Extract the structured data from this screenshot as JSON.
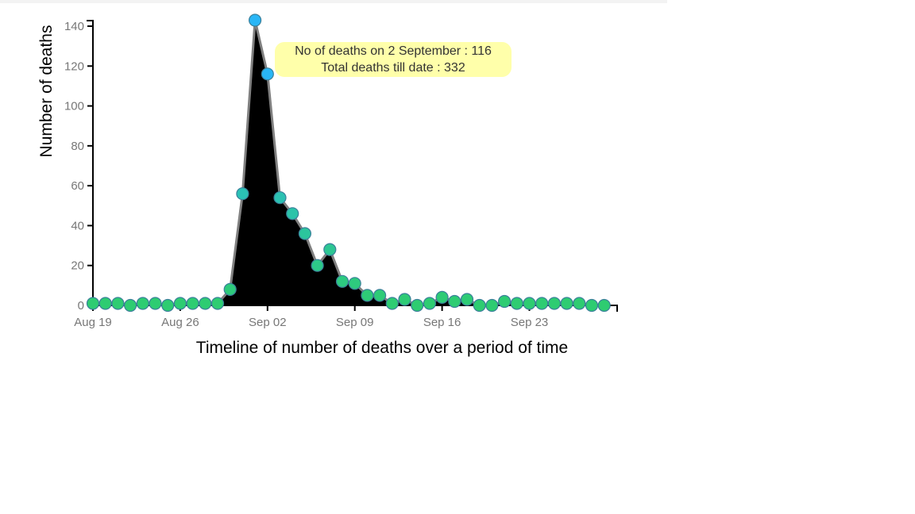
{
  "chart_data": {
    "type": "area",
    "xlabel": "Timeline of number of deaths over a period of time",
    "ylabel": "Number of deaths",
    "ylim": [
      0,
      140
    ],
    "yticks": [
      0,
      20,
      40,
      60,
      80,
      100,
      120,
      140
    ],
    "xticks": [
      {
        "date": "2024-08-19",
        "label": "Aug 19"
      },
      {
        "date": "2024-08-26",
        "label": "Aug 26"
      },
      {
        "date": "2024-09-02",
        "label": "Sep 02"
      },
      {
        "date": "2024-09-09",
        "label": "Sep 09"
      },
      {
        "date": "2024-09-16",
        "label": "Sep 16"
      },
      {
        "date": "2024-09-23",
        "label": "Sep 23"
      }
    ],
    "x": [
      "2024-08-19",
      "2024-08-20",
      "2024-08-21",
      "2024-08-22",
      "2024-08-23",
      "2024-08-24",
      "2024-08-25",
      "2024-08-26",
      "2024-08-27",
      "2024-08-28",
      "2024-08-29",
      "2024-08-30",
      "2024-08-31",
      "2024-09-01",
      "2024-09-02",
      "2024-09-03",
      "2024-09-04",
      "2024-09-05",
      "2024-09-06",
      "2024-09-07",
      "2024-09-08",
      "2024-09-09",
      "2024-09-10",
      "2024-09-11",
      "2024-09-12",
      "2024-09-13",
      "2024-09-14",
      "2024-09-15",
      "2024-09-16",
      "2024-09-17",
      "2024-09-18",
      "2024-09-19",
      "2024-09-20",
      "2024-09-21",
      "2024-09-22",
      "2024-09-23",
      "2024-09-24",
      "2024-09-25",
      "2024-09-26",
      "2024-09-27",
      "2024-09-28",
      "2024-09-29"
    ],
    "values": [
      1,
      1,
      1,
      0,
      1,
      1,
      0,
      1,
      1,
      1,
      1,
      8,
      56,
      143,
      116,
      54,
      46,
      36,
      20,
      28,
      12,
      11,
      5,
      5,
      1,
      3,
      0,
      1,
      4,
      2,
      3,
      0,
      0,
      2,
      1,
      1,
      1,
      1,
      1,
      1,
      0,
      0
    ],
    "area_color": "#000000",
    "line_color": "#808080",
    "point_color_low": "#2ecc71",
    "point_color_high": "#29b6f6",
    "point_stroke": "#3a7f9a",
    "tooltip": {
      "line1": "No of deaths on 2 September : 116",
      "line2": "Total deaths till date : 332"
    }
  }
}
